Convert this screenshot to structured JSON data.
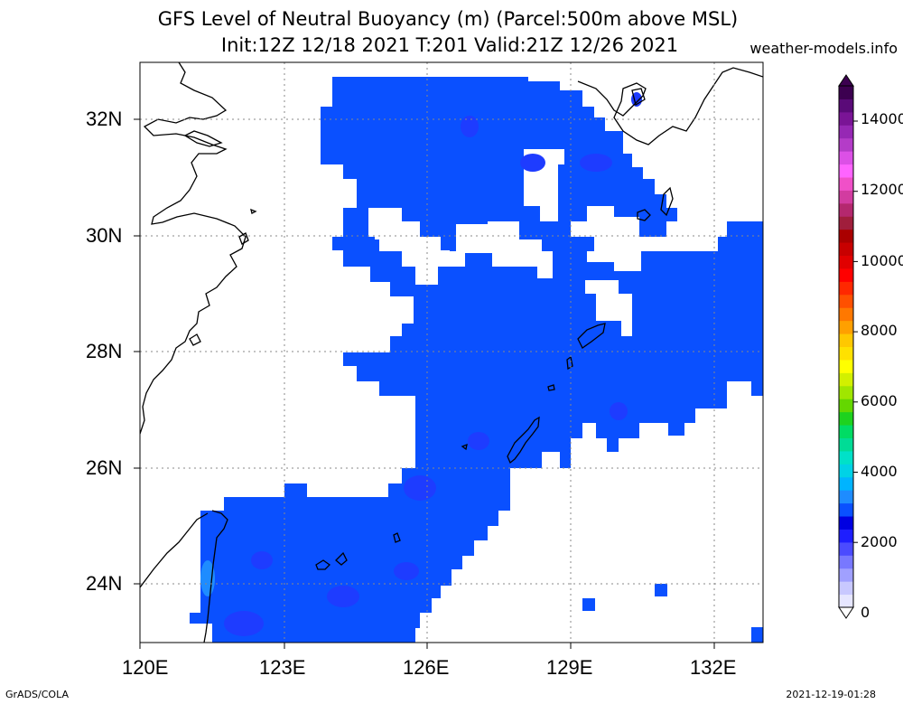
{
  "title": {
    "line1": "GFS Level of Neutral Buoyancy (m) (Parcel:500m above MSL)",
    "line2": "Init:12Z 12/18 2021 T:201 Valid:21Z 12/26 2021",
    "brand": "weather-models.info"
  },
  "axes": {
    "lon_labels": [
      "120E",
      "123E",
      "126E",
      "129E",
      "132E"
    ],
    "lat_labels": [
      "32N",
      "30N",
      "28N",
      "26N",
      "24N"
    ]
  },
  "colorbar": {
    "labels": [
      "14000",
      "12000",
      "10000",
      "8000",
      "6000",
      "4000",
      "2000",
      "0"
    ],
    "colors": [
      "#e6e6ff",
      "#c8c8ff",
      "#a0a0ff",
      "#7878ff",
      "#4b4bff",
      "#1e1eff",
      "#0000e1",
      "#0a50ff",
      "#1e8cff",
      "#00b4ff",
      "#00d2e6",
      "#00e1c8",
      "#00dc96",
      "#00dc64",
      "#1ed21e",
      "#64d700",
      "#a0e600",
      "#d2f000",
      "#ffff00",
      "#ffe100",
      "#ffc800",
      "#ffa000",
      "#ff7800",
      "#ff5000",
      "#ff2800",
      "#ff0000",
      "#e10000",
      "#c80000",
      "#aa0000",
      "#a01e3c",
      "#b4286e",
      "#d23ca0",
      "#f050c8",
      "#ff64ff",
      "#dc50e6",
      "#b43cc8",
      "#9628b4",
      "#7a1496",
      "#5a0a78",
      "#3c0050"
    ]
  },
  "footer": {
    "left": "GrADS/COLA",
    "right": "2021-12-19-01:28"
  }
}
